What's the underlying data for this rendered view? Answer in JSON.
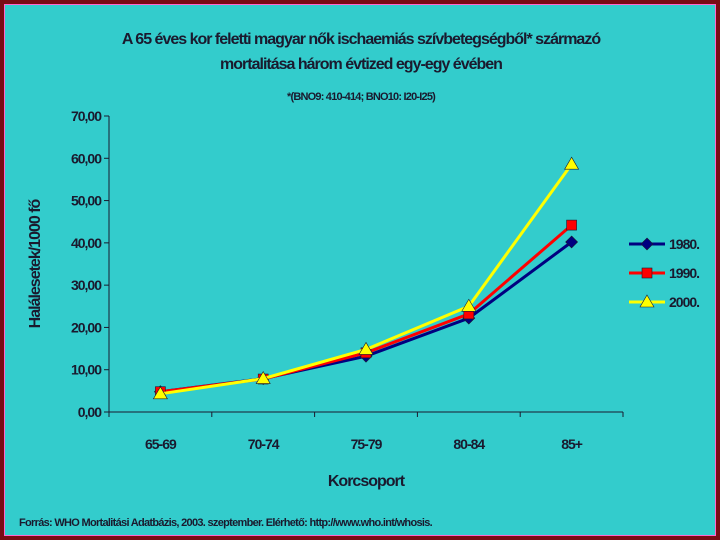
{
  "chart_data": {
    "type": "line",
    "title_line1": "A 65 éves kor feletti magyar nők ischaemiás szívbetegségből* származó",
    "title_line2": "mortalitása három évtized egy-egy évében",
    "subtitle": "*(BNO9: 410-414; BNO10: I20-I25)",
    "xlabel": "Korcsoport",
    "ylabel": "Halálesetek/1000 fő",
    "categories": [
      "65-69",
      "70-74",
      "75-79",
      "80-84",
      "85+"
    ],
    "ylim": [
      0,
      70
    ],
    "yticks": [
      "0,00",
      "10,00",
      "20,00",
      "30,00",
      "40,00",
      "50,00",
      "60,00",
      "70,00"
    ],
    "grid": false,
    "legend_position": "right",
    "series": [
      {
        "name": "1980.",
        "color": "#000080",
        "marker": "diamond",
        "values": [
          4.8,
          7.9,
          13.2,
          22.2,
          40.2
        ]
      },
      {
        "name": "1990.",
        "color": "#ff0000",
        "marker": "square",
        "values": [
          4.8,
          7.8,
          14.0,
          23.2,
          44.2
        ]
      },
      {
        "name": "2000.",
        "color": "#ffff00",
        "marker": "triangle",
        "values": [
          4.3,
          7.9,
          14.8,
          25.0,
          58.6
        ]
      }
    ]
  },
  "source": "Forrás: WHO Mortalitási Adatbázis, 2003. szeptember. Elérhető: http://www.who.int/whosis."
}
